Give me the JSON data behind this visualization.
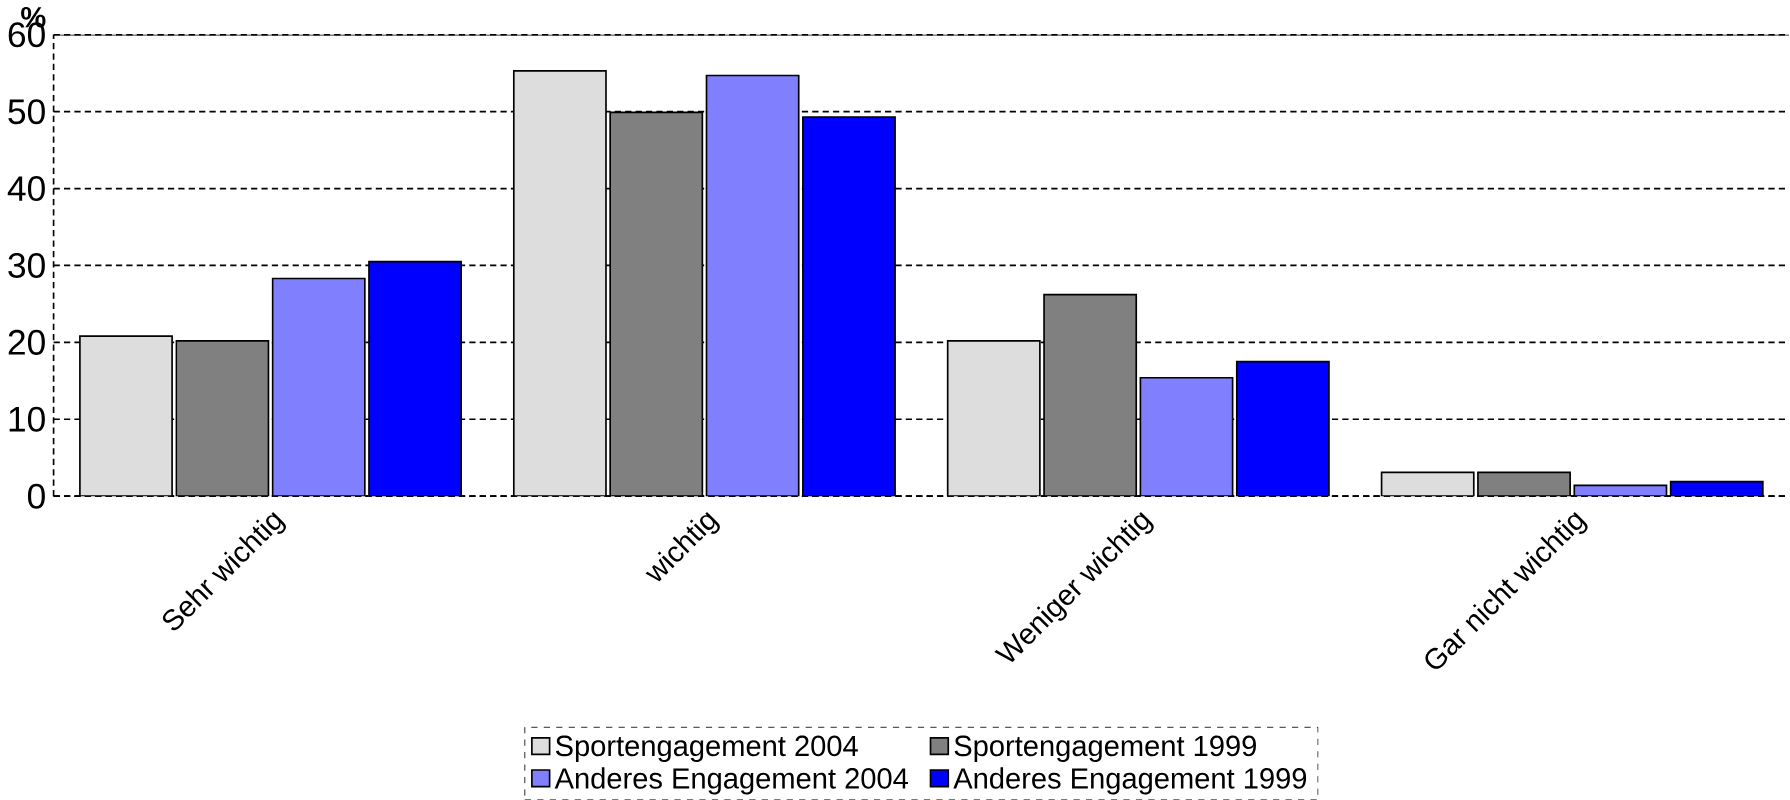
{
  "chart_data": {
    "type": "bar",
    "ylabel": "%",
    "categories": [
      "Sehr wichtig",
      "wichtig",
      "Weniger wichtig",
      "Gar nicht wichtig"
    ],
    "series": [
      {
        "name": "Sportengagement 2004",
        "color": "#dddddd",
        "values": [
          20.8,
          55.3,
          20.2,
          3.1
        ]
      },
      {
        "name": "Sportengagement 1999",
        "color": "#808080",
        "values": [
          20.2,
          49.9,
          26.2,
          3.1
        ]
      },
      {
        "name": "Anderes Engagement 2004",
        "color": "#8080ff",
        "values": [
          28.3,
          54.7,
          15.4,
          1.4
        ]
      },
      {
        "name": "Anderes Engagement 1999",
        "color": "#0000ff",
        "values": [
          30.5,
          49.3,
          17.5,
          1.9
        ]
      }
    ],
    "ylim": [
      0,
      60
    ],
    "yticks": [
      0,
      10,
      20,
      30,
      40,
      50,
      60
    ],
    "grid": "y",
    "legend": "bottom"
  }
}
